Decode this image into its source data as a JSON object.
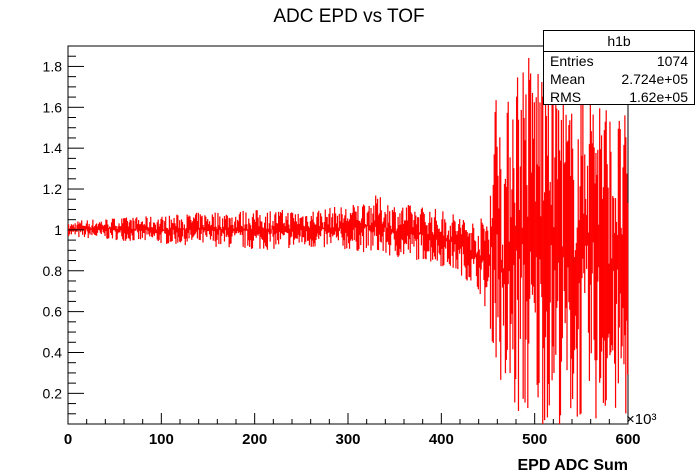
{
  "chart_data": {
    "type": "line",
    "title": "ADC EPD vs TOF",
    "xlabel": "EPD ADC Sum",
    "ylabel": "",
    "x_multiplier_label": "×10³",
    "xlim": [
      0,
      600
    ],
    "ylim": [
      0.05,
      1.9
    ],
    "x_ticks": [
      0,
      100,
      200,
      300,
      400,
      500,
      600
    ],
    "x_tick_labels": [
      "0",
      "100",
      "200",
      "300",
      "400",
      "500",
      "600"
    ],
    "y_ticks": [
      0.2,
      0.4,
      0.6,
      0.8,
      1.0,
      1.2,
      1.4,
      1.6,
      1.8
    ],
    "y_tick_labels": [
      "0.2",
      "0.4",
      "0.6",
      "0.8",
      "1",
      "1.2",
      "1.4",
      "1.6",
      "1.8"
    ],
    "grid": false,
    "series_color": "#ff0000",
    "envelope": {
      "x": [
        0,
        10,
        50,
        100,
        150,
        200,
        250,
        300,
        330,
        350,
        380,
        400,
        420,
        440,
        450,
        460,
        465,
        470,
        475,
        480,
        490,
        500,
        520,
        540,
        560,
        580,
        600
      ],
      "ymin": [
        0.97,
        0.96,
        0.95,
        0.93,
        0.92,
        0.9,
        0.91,
        0.9,
        0.88,
        0.86,
        0.85,
        0.82,
        0.78,
        0.7,
        0.55,
        0.3,
        0.15,
        0.1,
        0.05,
        0.05,
        0.05,
        0.05,
        0.05,
        0.05,
        0.05,
        0.05,
        0.05
      ],
      "ymax": [
        1.03,
        1.05,
        1.06,
        1.07,
        1.09,
        1.1,
        1.1,
        1.12,
        1.17,
        1.13,
        1.12,
        1.1,
        1.08,
        1.04,
        1.15,
        1.9,
        1.4,
        1.6,
        1.9,
        1.9,
        1.9,
        1.9,
        1.9,
        1.6,
        1.9,
        1.6,
        1.57
      ]
    }
  },
  "stats_box": {
    "title": "h1b",
    "rows": [
      {
        "key": "Entries",
        "value": "1074"
      },
      {
        "key": "Mean",
        "value": "2.724e+05"
      },
      {
        "key": "RMS",
        "value": "1.62e+05"
      }
    ]
  }
}
